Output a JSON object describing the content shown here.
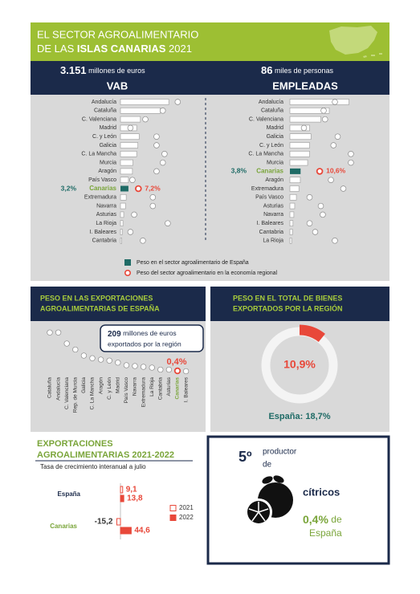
{
  "header": {
    "line1": "EL SECTOR AGROALIMENTARIO",
    "line2_prefix": "DE LAS",
    "line2_bold": "ISLAS CANARIAS",
    "year": "2021"
  },
  "legend": [
    {
      "label": "Peso en el sector agroalimentario de España",
      "color": "#1f6b66"
    },
    {
      "label": "Peso del sector agroalimentario en la economía regional",
      "color": "#e8483a"
    }
  ],
  "chart_data": [
    {
      "type": "dotbar",
      "figure": "3.151",
      "unit": "millones de euros",
      "title": "VAB",
      "categories": [
        "Andalucía",
        "Cataluña",
        "C. Valenciana",
        "Madrid",
        "C. y León",
        "Galicia",
        "C. La Mancha",
        "Murcia",
        "Aragón",
        "País Vasco",
        "Canarias",
        "Extremadura",
        "Navarra",
        "Asturias",
        "La Rioja",
        "I. Baleares",
        "Cantabria"
      ],
      "series": [
        {
          "color": "#ffffff",
          "highlight_color": "#1f6b66",
          "values": [
            19.4,
            16,
            8,
            6.5,
            7.5,
            7,
            6.5,
            5,
            4.8,
            3.2,
            3.2,
            2.3,
            2,
            1.3,
            1,
            0.7,
            0.5
          ],
          "value_labels": [
            null,
            null,
            null,
            null,
            null,
            null,
            null,
            null,
            null,
            null,
            "3,2%",
            null,
            null,
            null,
            null,
            null,
            null
          ]
        },
        {
          "color": "#ffffff",
          "highlight_color": "#e8483a",
          "values": [
            23,
            17,
            10,
            4,
            14.5,
            14.5,
            17.7,
            17,
            14.5,
            4.8,
            7.2,
            13,
            13,
            5.5,
            19,
            4,
            9
          ],
          "value_labels": [
            null,
            null,
            null,
            null,
            null,
            null,
            null,
            null,
            null,
            null,
            "7,2%",
            null,
            null,
            null,
            null,
            null,
            null
          ]
        }
      ]
    },
    {
      "type": "dotbar",
      "figure": "86",
      "unit": "miles de personas",
      "title": "EMPLEADAS",
      "categories": [
        "Andalucía",
        "Cataluña",
        "C. Valenciana",
        "Madrid",
        "Galicia",
        "C. y León",
        "C. La Mancha",
        "Murcia",
        "Canarias",
        "Aragón",
        "Extremadura",
        "País Vasco",
        "Asturias",
        "Navarra",
        "I. Baleares",
        "Cantabria",
        "La Rioja"
      ],
      "series": [
        {
          "color": "#ffffff",
          "highlight_color": "#1f6b66",
          "values": [
            21,
            14,
            11,
            7,
            7.5,
            7,
            7,
            6.3,
            3.8,
            3.7,
            3.2,
            2.3,
            1.7,
            1.4,
            1.1,
            0.9,
            0.6
          ],
          "value_labels": [
            null,
            null,
            null,
            null,
            null,
            null,
            null,
            null,
            "3,8%",
            null,
            null,
            null,
            null,
            null,
            null,
            null,
            null
          ]
        },
        {
          "color": "#ffffff",
          "highlight_color": "#e8483a",
          "values": [
            16,
            12,
            12.5,
            5,
            17,
            15.5,
            21.7,
            21.7,
            10.6,
            14.6,
            19,
            7,
            11,
            11.7,
            7,
            9,
            16
          ],
          "value_labels": [
            null,
            null,
            null,
            null,
            null,
            null,
            null,
            null,
            "10,6%",
            null,
            null,
            null,
            null,
            null,
            null,
            null,
            null
          ]
        }
      ]
    },
    {
      "type": "dot",
      "title": [
        "PESO EN LAS EXPORTACIONES",
        "AGROALIMENTARIAS DE ESPAÑA"
      ],
      "callout": {
        "figure": "209",
        "unit": "millones de euros",
        "line2": "exportados por la región"
      },
      "categories": [
        "Cataluña",
        "Andalucía",
        "C. Valenciana",
        "Rep. de Murcia",
        "Galicia",
        "C. La Mancha",
        "Aragón",
        "C. y León",
        "Madrid",
        "País Vasco",
        "Navarra",
        "Extremadura",
        "La Rioja",
        "Cantabria",
        "Asturias",
        "Canarias",
        "I. Baleares"
      ],
      "color": "#ffffff",
      "highlight_color": "#e8483a",
      "values": [
        19.5,
        19.5,
        14,
        11,
        8,
        6.7,
        6,
        5.5,
        4.5,
        3.2,
        2.8,
        2.4,
        2,
        1,
        1,
        0.4,
        0.2
      ],
      "value_labels": [
        null,
        null,
        null,
        null,
        null,
        null,
        null,
        null,
        null,
        null,
        null,
        null,
        null,
        null,
        null,
        "0,4%",
        null
      ]
    },
    {
      "type": "donut",
      "title": [
        "PESO EN EL TOTAL DE BIENES",
        "EXPORTADOS POR LA REGIÓN"
      ],
      "value": 10.9,
      "value_label": "10,9%",
      "color": "#e8483a",
      "track_color": "#f4f4f4",
      "reference": {
        "label": "España:",
        "value": 18.7,
        "value_label": "18,7%"
      }
    },
    {
      "type": "hbar",
      "title": [
        "EXPORTACIONES",
        "AGROALIMENTARIAS 2021-2022"
      ],
      "subtitle": "Tasa de crecimiento interanual a julio",
      "categories": [
        "España",
        "Canarias"
      ],
      "series": [
        {
          "name": "2021",
          "color": "#e8483a",
          "fill": "none",
          "values": [
            9.1,
            -15.2
          ],
          "value_labels": [
            "9,1",
            "-15,2"
          ]
        },
        {
          "name": "2022",
          "color": "#e8483a",
          "fill": "#e8483a",
          "values": [
            13.8,
            44.6
          ],
          "value_labels": [
            "13,8",
            "44,6"
          ]
        }
      ]
    }
  ],
  "producer": {
    "rank": "5º",
    "line1": "productor",
    "line2": "de",
    "product": "cítricos",
    "share": "0,4%",
    "share_suffix": "de",
    "region": "España"
  }
}
